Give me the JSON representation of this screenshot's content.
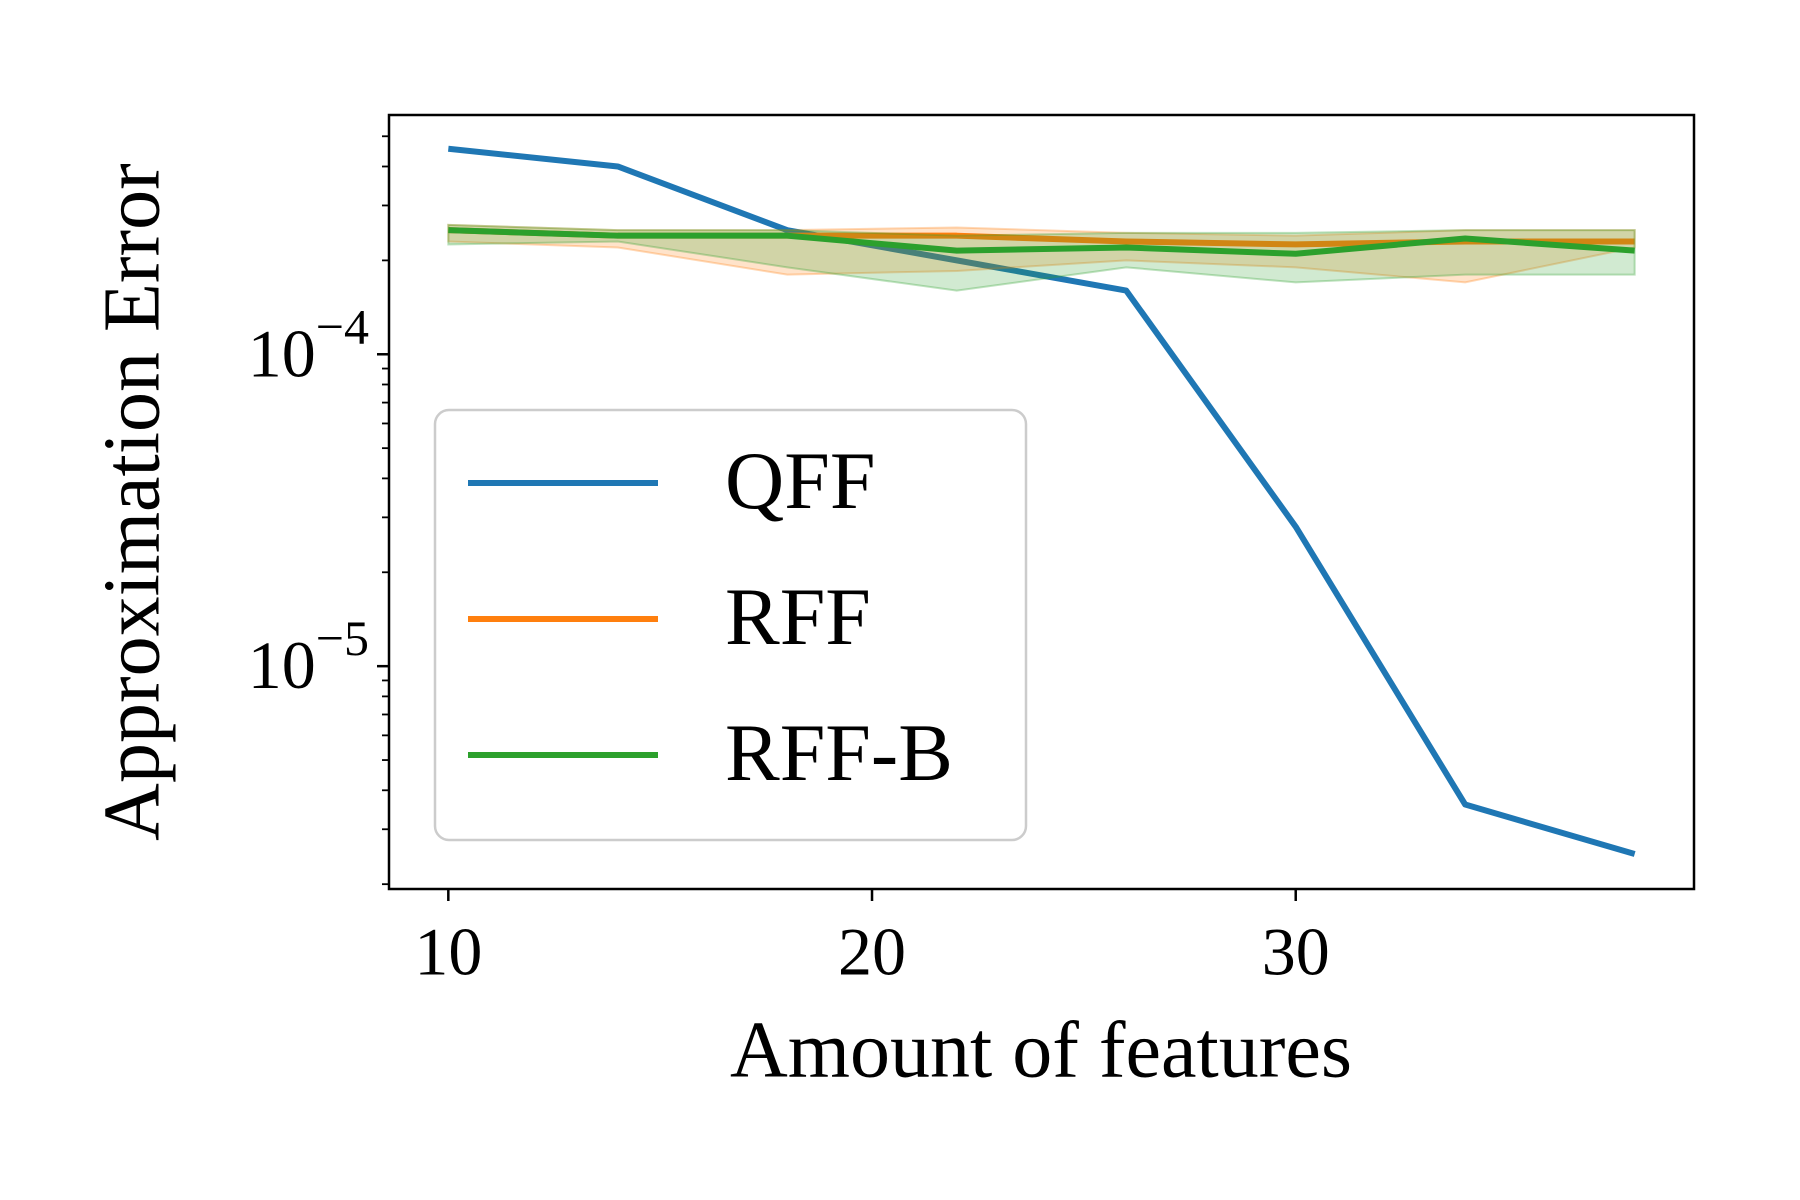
{
  "chart_data": {
    "type": "line",
    "xlabel": "Amount of features",
    "ylabel": "Approximation Error",
    "x": [
      10,
      14,
      18,
      22,
      26,
      30,
      34,
      38
    ],
    "xlim": [
      8.6,
      39.4
    ],
    "xticks": [
      10,
      20,
      30
    ],
    "ylim": [
      1.93e-06,
      0.000585
    ],
    "yscale": "log",
    "yticks": [
      {
        "value": 1e-05,
        "label": "10−5"
      },
      {
        "value": 0.0001,
        "label": "10−4"
      }
    ],
    "yminorticks": [
      2e-06,
      3e-06,
      4e-06,
      5e-06,
      6e-06,
      7e-06,
      8e-06,
      9e-06,
      2e-05,
      3e-05,
      4e-05,
      5e-05,
      6e-05,
      7e-05,
      8e-05,
      9e-05,
      0.0002,
      0.0003,
      0.0004,
      0.0005
    ],
    "grid": false,
    "legend": "lower left",
    "series": [
      {
        "name": "QFF",
        "color": "#1f77b4",
        "values": [
          0.000456,
          0.0004,
          0.00025,
          0.0002,
          0.00016,
          2.8e-05,
          3.6e-06,
          2.5e-06
        ]
      },
      {
        "name": "RFF",
        "color": "#ff7f0e",
        "values": [
          0.00025,
          0.00024,
          0.00024,
          0.00024,
          0.00023,
          0.000225,
          0.00023,
          0.00023
        ],
        "lower": [
          0.00023,
          0.00022,
          0.00018,
          0.000185,
          0.0002,
          0.00019,
          0.00017,
          0.00022
        ],
        "upper": [
          0.00026,
          0.00025,
          0.00025,
          0.000255,
          0.000245,
          0.00024,
          0.00025,
          0.00025
        ]
      },
      {
        "name": "RFF-B",
        "color": "#2ca02c",
        "values": [
          0.00025,
          0.00024,
          0.00024,
          0.000215,
          0.00022,
          0.00021,
          0.000235,
          0.000215
        ],
        "lower": [
          0.000225,
          0.00023,
          0.00019,
          0.00016,
          0.00019,
          0.00017,
          0.00018,
          0.00018
        ],
        "upper": [
          0.00026,
          0.00025,
          0.00025,
          0.00024,
          0.000245,
          0.000245,
          0.00025,
          0.00025
        ]
      }
    ]
  }
}
